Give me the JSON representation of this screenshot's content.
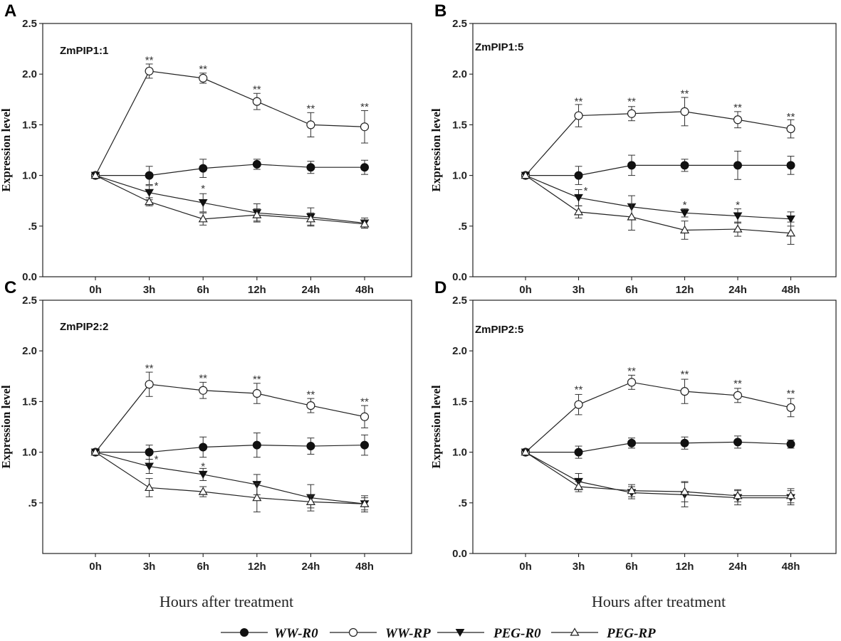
{
  "figure": {
    "x_axis_title": "Hours after treatment",
    "y_axis_title": "Expression level",
    "legend": [
      {
        "name": "WW-R0",
        "marker": "filled-circle"
      },
      {
        "name": "WW-RP",
        "marker": "open-circle"
      },
      {
        "name": "PEG-R0",
        "marker": "filled-triangle-down"
      },
      {
        "name": "PEG-RP",
        "marker": "open-triangle-up"
      }
    ]
  },
  "chart_data": [
    {
      "panel": "A",
      "type": "line",
      "title": "ZmPIP1:1",
      "categories": [
        "0h",
        "3h",
        "6h",
        "12h",
        "24h",
        "48h"
      ],
      "yticks": [
        "0.0",
        ".5",
        "1.0",
        "1.5",
        "2.0",
        "2.5"
      ],
      "ylim": [
        0,
        2.5
      ],
      "xlabel": "",
      "ylabel": "Expression level",
      "series": [
        {
          "name": "WW-R0",
          "values": [
            1.0,
            1.0,
            1.07,
            1.11,
            1.08,
            1.08
          ],
          "errors": [
            0,
            0.09,
            0.09,
            0.05,
            0.06,
            0.07
          ]
        },
        {
          "name": "WW-RP",
          "values": [
            1.0,
            2.03,
            1.96,
            1.73,
            1.5,
            1.48
          ],
          "errors": [
            0,
            0.07,
            0.05,
            0.08,
            0.12,
            0.16
          ]
        },
        {
          "name": "PEG-R0",
          "values": [
            1.0,
            0.83,
            0.73,
            0.63,
            0.59,
            0.53
          ],
          "errors": [
            0,
            0.07,
            0.09,
            0.09,
            0.09,
            0.05
          ]
        },
        {
          "name": "PEG-RP",
          "values": [
            1.0,
            0.74,
            0.57,
            0.61,
            0.57,
            0.52
          ],
          "errors": [
            0,
            0.04,
            0.06,
            0.06,
            0.06,
            0.04
          ]
        }
      ],
      "annotations": [
        {
          "category": "3h",
          "text": "**",
          "y": 2.14
        },
        {
          "category": "6h",
          "text": "**",
          "y": 2.05
        },
        {
          "category": "12h",
          "text": "**",
          "y": 1.85
        },
        {
          "category": "24h",
          "text": "**",
          "y": 1.66
        },
        {
          "category": "48h",
          "text": "**",
          "y": 1.68
        },
        {
          "category": "3h",
          "text": "*",
          "y": 0.9,
          "offset": 10
        },
        {
          "category": "6h",
          "text": "*",
          "y": 0.87
        }
      ]
    },
    {
      "panel": "B",
      "type": "line",
      "title": "ZmPIP1:5",
      "categories": [
        "0h",
        "3h",
        "6h",
        "12h",
        "24h",
        "48h"
      ],
      "yticks": [
        "0.0",
        ".5",
        "1.0",
        "1.5",
        "2.0",
        "2.5"
      ],
      "ylim": [
        0,
        2.5
      ],
      "xlabel": "",
      "ylabel": "Expression level",
      "series": [
        {
          "name": "WW-R0",
          "values": [
            1.0,
            1.0,
            1.1,
            1.1,
            1.1,
            1.1
          ],
          "errors": [
            0,
            0.09,
            0.1,
            0.06,
            0.14,
            0.09
          ]
        },
        {
          "name": "WW-RP",
          "values": [
            1.0,
            1.59,
            1.61,
            1.63,
            1.55,
            1.46
          ],
          "errors": [
            0,
            0.11,
            0.07,
            0.14,
            0.08,
            0.09
          ]
        },
        {
          "name": "PEG-R0",
          "values": [
            1.0,
            0.78,
            0.69,
            0.63,
            0.6,
            0.57
          ],
          "errors": [
            0,
            0.08,
            0.11,
            0.04,
            0.07,
            0.07
          ]
        },
        {
          "name": "PEG-RP",
          "values": [
            1.0,
            0.64,
            0.59,
            0.46,
            0.47,
            0.43
          ],
          "errors": [
            0,
            0.06,
            0.13,
            0.09,
            0.07,
            0.11
          ]
        }
      ],
      "annotations": [
        {
          "category": "3h",
          "text": "**",
          "y": 1.73
        },
        {
          "category": "6h",
          "text": "**",
          "y": 1.73
        },
        {
          "category": "12h",
          "text": "**",
          "y": 1.81
        },
        {
          "category": "24h",
          "text": "**",
          "y": 1.67
        },
        {
          "category": "48h",
          "text": "**",
          "y": 1.58
        },
        {
          "category": "3h",
          "text": "*",
          "y": 0.85,
          "offset": 10
        },
        {
          "category": "12h",
          "text": "*",
          "y": 0.71
        },
        {
          "category": "24h",
          "text": "*",
          "y": 0.71
        }
      ]
    },
    {
      "panel": "C",
      "type": "line",
      "title": "ZmPIP2:2",
      "categories": [
        "0h",
        "3h",
        "6h",
        "12h",
        "24h",
        "48h"
      ],
      "yticks": [
        ".5",
        "1.0",
        "1.5",
        "2.0",
        "2.5"
      ],
      "ylim": [
        0,
        2.5
      ],
      "xlabel": "Hours after treatment",
      "ylabel": "Expression level",
      "series": [
        {
          "name": "WW-R0",
          "values": [
            1.0,
            1.0,
            1.05,
            1.07,
            1.06,
            1.07
          ],
          "errors": [
            0,
            0.07,
            0.1,
            0.12,
            0.08,
            0.1
          ]
        },
        {
          "name": "WW-RP",
          "values": [
            1.0,
            1.67,
            1.61,
            1.58,
            1.46,
            1.35
          ],
          "errors": [
            0,
            0.12,
            0.08,
            0.1,
            0.07,
            0.11
          ]
        },
        {
          "name": "PEG-R0",
          "values": [
            1.0,
            0.86,
            0.78,
            0.68,
            0.55,
            0.49
          ],
          "errors": [
            0,
            0.07,
            0.06,
            0.1,
            0.13,
            0.08
          ]
        },
        {
          "name": "PEG-RP",
          "values": [
            1.0,
            0.65,
            0.61,
            0.55,
            0.51,
            0.49
          ],
          "errors": [
            0,
            0.09,
            0.05,
            0.14,
            0.06,
            0.06
          ]
        }
      ],
      "annotations": [
        {
          "category": "3h",
          "text": "**",
          "y": 1.83
        },
        {
          "category": "6h",
          "text": "**",
          "y": 1.73
        },
        {
          "category": "12h",
          "text": "**",
          "y": 1.72
        },
        {
          "category": "24h",
          "text": "**",
          "y": 1.57
        },
        {
          "category": "48h",
          "text": "**",
          "y": 1.5
        },
        {
          "category": "3h",
          "text": "*",
          "y": 0.93,
          "offset": 10
        },
        {
          "category": "6h",
          "text": "*",
          "y": 0.86
        }
      ]
    },
    {
      "panel": "D",
      "type": "line",
      "title": "ZmPIP2:5",
      "categories": [
        "0h",
        "3h",
        "6h",
        "12h",
        "24h",
        "48h"
      ],
      "yticks": [
        "0.0",
        ".5",
        "1.0",
        "1.5",
        "2.0",
        "2.5"
      ],
      "ylim": [
        0,
        2.5
      ],
      "xlabel": "Hours after treatment",
      "ylabel": "Expression level",
      "series": [
        {
          "name": "WW-R0",
          "values": [
            1.0,
            1.0,
            1.09,
            1.09,
            1.1,
            1.08
          ],
          "errors": [
            0,
            0.06,
            0.05,
            0.06,
            0.06,
            0.04
          ]
        },
        {
          "name": "WW-RP",
          "values": [
            1.0,
            1.47,
            1.69,
            1.6,
            1.56,
            1.44
          ],
          "errors": [
            0,
            0.1,
            0.07,
            0.12,
            0.07,
            0.09
          ]
        },
        {
          "name": "PEG-R0",
          "values": [
            1.0,
            0.71,
            0.6,
            0.58,
            0.55,
            0.55
          ],
          "errors": [
            0,
            0.08,
            0.06,
            0.12,
            0.07,
            0.07
          ]
        },
        {
          "name": "PEG-RP",
          "values": [
            1.0,
            0.66,
            0.62,
            0.61,
            0.57,
            0.57
          ],
          "errors": [
            0,
            0.05,
            0.06,
            0.1,
            0.06,
            0.07
          ]
        }
      ],
      "annotations": [
        {
          "category": "3h",
          "text": "**",
          "y": 1.62
        },
        {
          "category": "6h",
          "text": "**",
          "y": 1.8
        },
        {
          "category": "12h",
          "text": "**",
          "y": 1.77
        },
        {
          "category": "24h",
          "text": "**",
          "y": 1.68
        },
        {
          "category": "48h",
          "text": "**",
          "y": 1.58
        }
      ]
    }
  ]
}
